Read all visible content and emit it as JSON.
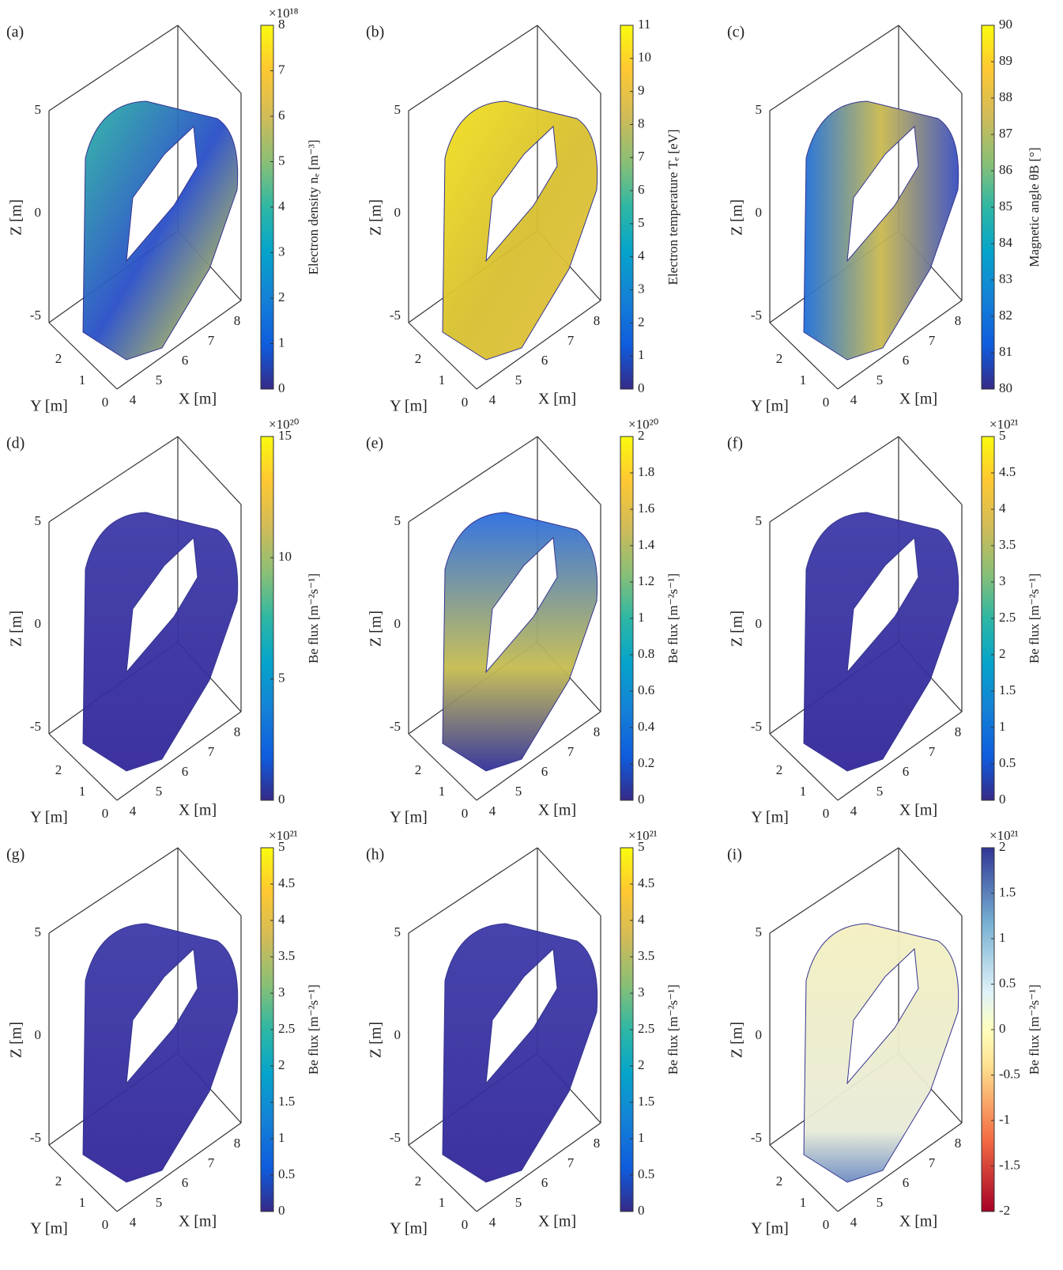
{
  "panels": [
    {
      "label": "(a)",
      "z_label": "Z [m]",
      "y_label": "Y [m]",
      "x_label": "X [m]",
      "z_ticks": [
        5,
        0,
        -5
      ],
      "y_ticks": [
        0,
        1,
        2
      ],
      "x_ticks": [
        4,
        5,
        6,
        7,
        8
      ],
      "colorbar": {
        "label": "Electron density nₑ [m⁻³]",
        "exponent": "×10¹⁸",
        "colormap": "parula",
        "lim": [
          0,
          8
        ],
        "ticks": [
          0,
          1,
          2,
          3,
          4,
          5,
          6,
          7,
          8
        ]
      }
    },
    {
      "label": "(b)",
      "z_label": "Z [m]",
      "y_label": "Y [m]",
      "x_label": "X [m]",
      "z_ticks": [
        5,
        0,
        -5
      ],
      "y_ticks": [
        0,
        1,
        2
      ],
      "x_ticks": [
        4,
        5,
        6,
        7,
        8
      ],
      "colorbar": {
        "label": "Electron temperature Tₑ [eV]",
        "colormap": "parula",
        "lim": [
          0,
          11
        ],
        "ticks": [
          0,
          1,
          2,
          3,
          4,
          5,
          6,
          7,
          8,
          9,
          10,
          11
        ]
      }
    },
    {
      "label": "(c)",
      "z_label": "Z [m]",
      "y_label": "Y [m]",
      "x_label": "X [m]",
      "z_ticks": [
        5,
        0,
        -5
      ],
      "y_ticks": [
        0,
        1,
        2
      ],
      "x_ticks": [
        4,
        5,
        6,
        7,
        8
      ],
      "colorbar": {
        "label": "Magnetic angle θB [°]",
        "colormap": "parula",
        "lim": [
          80,
          90
        ],
        "ticks": [
          80,
          81,
          82,
          83,
          84,
          85,
          86,
          87,
          88,
          89,
          90
        ]
      }
    },
    {
      "label": "(d)",
      "z_label": "Z [m]",
      "y_label": "Y [m]",
      "x_label": "X [m]",
      "z_ticks": [
        5,
        0,
        -5
      ],
      "y_ticks": [
        0,
        1,
        2
      ],
      "x_ticks": [
        4,
        5,
        6,
        7,
        8
      ],
      "colorbar": {
        "label": "Be flux [m⁻²s⁻¹]",
        "exponent": "×10²⁰",
        "colormap": "parula",
        "lim": [
          0,
          15
        ],
        "ticks": [
          0,
          5,
          10,
          15
        ]
      }
    },
    {
      "label": "(e)",
      "z_label": "Z [m]",
      "y_label": "Y [m]",
      "x_label": "X [m]",
      "z_ticks": [
        5,
        0,
        -5
      ],
      "y_ticks": [
        0,
        1,
        2
      ],
      "x_ticks": [
        4,
        5,
        6,
        7,
        8
      ],
      "colorbar": {
        "label": "Be flux [m⁻²s⁻¹]",
        "exponent": "×10²⁰",
        "colormap": "parula",
        "lim": [
          0,
          2
        ],
        "ticks": [
          0,
          0.2,
          0.4,
          0.6,
          0.8,
          1,
          1.2,
          1.4,
          1.6,
          1.8,
          2
        ]
      }
    },
    {
      "label": "(f)",
      "z_label": "Z [m]",
      "y_label": "Y [m]",
      "x_label": "X [m]",
      "z_ticks": [
        5,
        0,
        -5
      ],
      "y_ticks": [
        0,
        1,
        2
      ],
      "x_ticks": [
        4,
        5,
        6,
        7,
        8
      ],
      "colorbar": {
        "label": "Be flux [m⁻²s⁻¹]",
        "exponent": "×10²¹",
        "colormap": "parula",
        "lim": [
          0,
          5
        ],
        "ticks": [
          0,
          0.5,
          1,
          1.5,
          2,
          2.5,
          3,
          3.5,
          4,
          4.5,
          5
        ]
      }
    },
    {
      "label": "(g)",
      "z_label": "Z [m]",
      "y_label": "Y [m]",
      "x_label": "X [m]",
      "z_ticks": [
        5,
        0,
        -5
      ],
      "y_ticks": [
        0,
        1,
        2
      ],
      "x_ticks": [
        4,
        5,
        6,
        7,
        8
      ],
      "colorbar": {
        "label": "Be flux [m⁻²s⁻¹]",
        "exponent": "×10²¹",
        "colormap": "parula",
        "lim": [
          0,
          5
        ],
        "ticks": [
          0,
          0.5,
          1,
          1.5,
          2,
          2.5,
          3,
          3.5,
          4,
          4.5,
          5
        ]
      }
    },
    {
      "label": "(h)",
      "z_label": "Z [m]",
      "y_label": "Y [m]",
      "x_label": "X [m]",
      "z_ticks": [
        5,
        0,
        -5
      ],
      "y_ticks": [
        0,
        1,
        2
      ],
      "x_ticks": [
        4,
        5,
        6,
        7,
        8
      ],
      "colorbar": {
        "label": "Be flux [m⁻²s⁻¹]",
        "exponent": "×10²¹",
        "colormap": "parula",
        "lim": [
          0,
          5
        ],
        "ticks": [
          0,
          0.5,
          1,
          1.5,
          2,
          2.5,
          3,
          3.5,
          4,
          4.5,
          5
        ]
      }
    },
    {
      "label": "(i)",
      "z_label": "Z [m]",
      "y_label": "Y [m]",
      "x_label": "X [m]",
      "z_ticks": [
        5,
        0,
        -5
      ],
      "y_ticks": [
        0,
        1,
        2
      ],
      "x_ticks": [
        4,
        5,
        6,
        7,
        8
      ],
      "colorbar": {
        "label": "Be flux [m⁻²s⁻¹]",
        "exponent": "×10²¹",
        "colormap": "diverging",
        "lim": [
          -2,
          2
        ],
        "ticks": [
          -2,
          -1.5,
          -1,
          -0.5,
          0,
          0.5,
          1,
          1.5,
          2
        ]
      }
    }
  ]
}
